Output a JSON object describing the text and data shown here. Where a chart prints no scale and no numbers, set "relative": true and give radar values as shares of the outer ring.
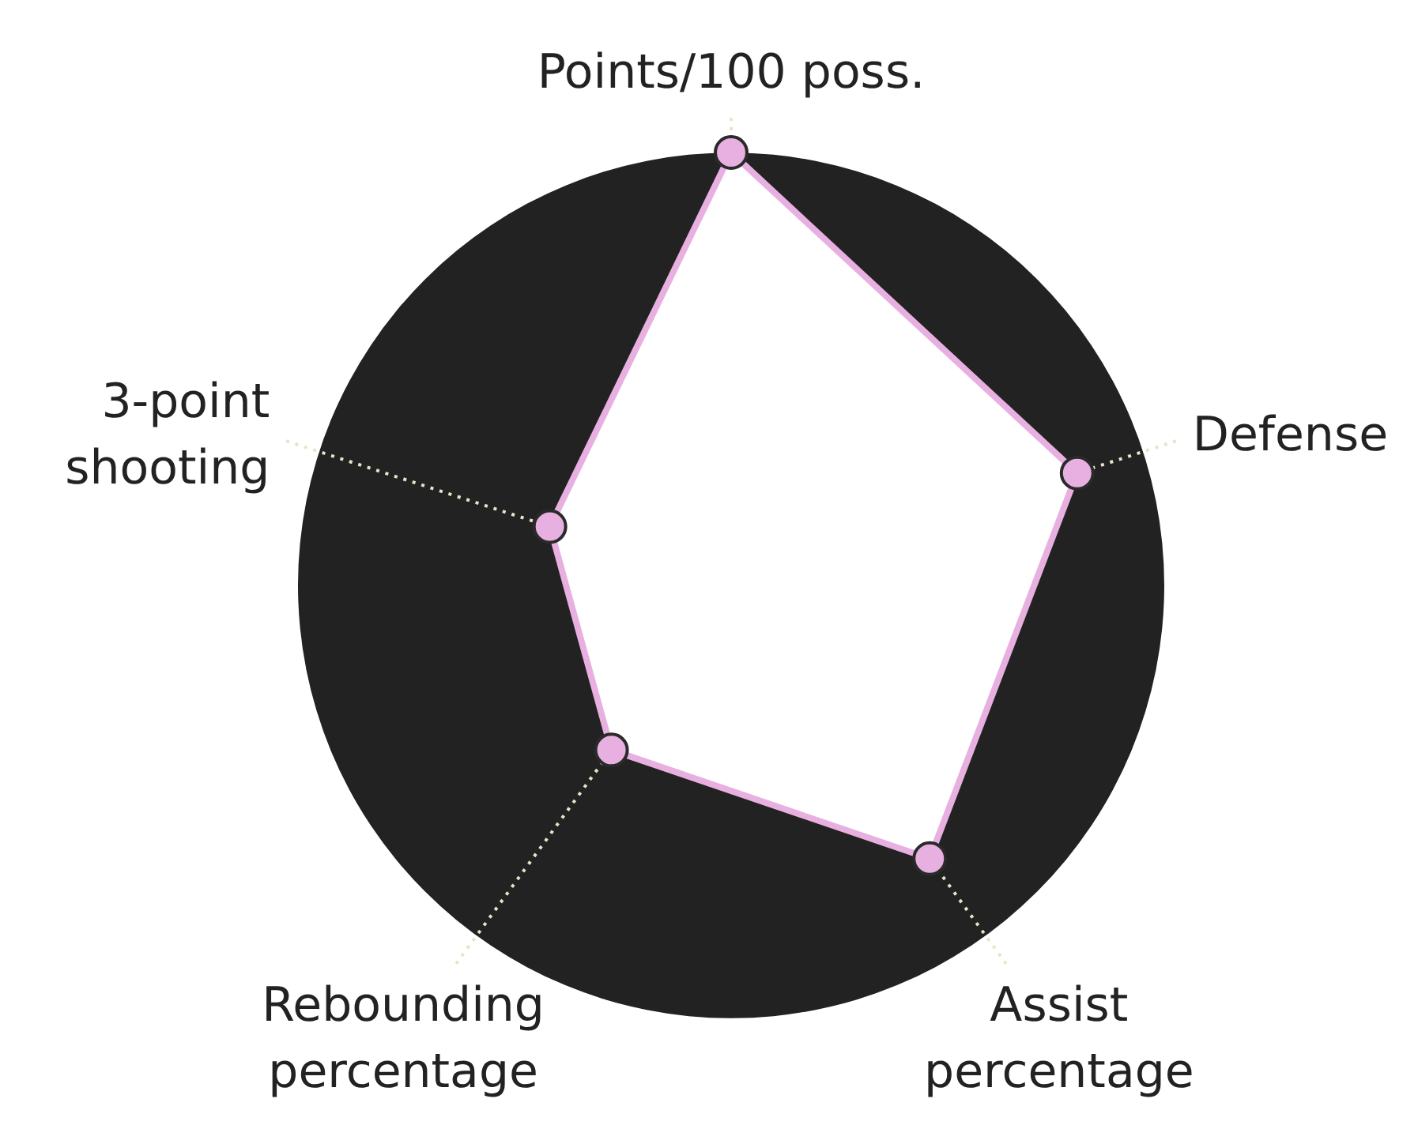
{
  "chart_data": {
    "type": "radar",
    "relative": true,
    "categories": [
      "Points/100 poss.",
      "Defense",
      "Assist percentage",
      "Rebounding percentage",
      "3-point shooting"
    ],
    "series": [
      {
        "color": "#e8b0e0",
        "values": [
          1.0,
          0.84,
          0.78,
          0.47,
          0.44
        ]
      }
    ],
    "marker": "circle",
    "grid": true
  }
}
